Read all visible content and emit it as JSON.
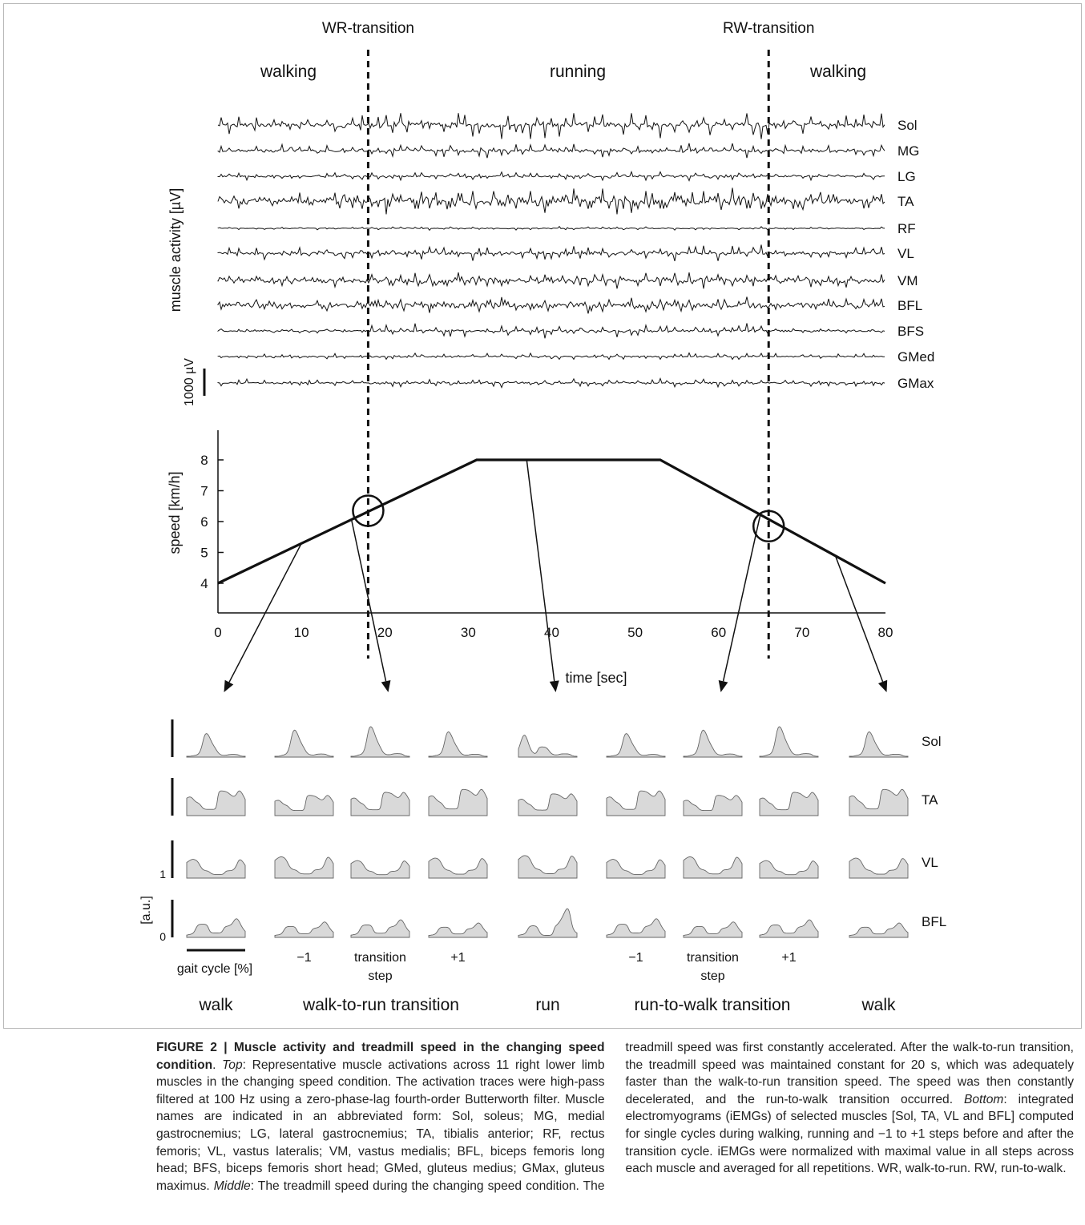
{
  "figure": {
    "transitions": [
      {
        "label": "WR-transition",
        "time": 18
      },
      {
        "label": "RW-transition",
        "time": 66
      }
    ],
    "phases": [
      "walking",
      "running",
      "walking"
    ],
    "emg": {
      "ylabel": "muscle activity [µV]",
      "scale_label": "1000 µV",
      "muscles": [
        "Sol",
        "MG",
        "LG",
        "TA",
        "RF",
        "VL",
        "VM",
        "BFL",
        "BFS",
        "GMed",
        "GMax"
      ]
    },
    "speed_chart": {
      "type": "line",
      "ylabel": "speed [km/h]",
      "xlabel": "time [sec]",
      "xlim": [
        0,
        80
      ],
      "ylim": [
        3,
        9
      ],
      "xticks": [
        "0",
        "10",
        "20",
        "30",
        "40",
        "50",
        "60",
        "70",
        "80"
      ],
      "yticks": [
        "4",
        "5",
        "6",
        "7",
        "8"
      ],
      "x": [
        0,
        31,
        53,
        80
      ],
      "y": [
        4,
        8,
        8,
        4
      ],
      "circles": [
        {
          "x": 18,
          "y": 6.35
        },
        {
          "x": 66,
          "y": 5.85
        }
      ]
    },
    "iemg": {
      "muscles": [
        "Sol",
        "TA",
        "VL",
        "BFL"
      ],
      "axis_label": "[a.u.]",
      "axis_ticks": [
        "1",
        "0"
      ],
      "gait_label": "gait cycle [%]",
      "col_labels": [
        {
          "col": 1,
          "lines": [
            "−1"
          ]
        },
        {
          "col": 2,
          "lines": [
            "transition",
            "step"
          ]
        },
        {
          "col": 3,
          "lines": [
            "+1"
          ]
        },
        {
          "col": 5,
          "lines": [
            "−1"
          ]
        },
        {
          "col": 6,
          "lines": [
            "transition",
            "step"
          ]
        },
        {
          "col": 7,
          "lines": [
            "+1"
          ]
        }
      ],
      "groups": [
        {
          "label": "walk",
          "cols": [
            0,
            0
          ]
        },
        {
          "label": "walk-to-run transition",
          "cols": [
            1,
            3
          ]
        },
        {
          "label": "run",
          "cols": [
            4,
            4
          ]
        },
        {
          "label": "run-to-walk transition",
          "cols": [
            5,
            7
          ]
        },
        {
          "label": "walk",
          "cols": [
            8,
            8
          ]
        }
      ]
    },
    "arrows": [
      {
        "from_time": 10,
        "to_col": 0
      },
      {
        "from_time": 16,
        "to_col": 2
      },
      {
        "from_time": 37,
        "to_col": 4
      },
      {
        "from_time": 65,
        "to_col": 6
      },
      {
        "from_time": 74,
        "to_col": 8
      }
    ]
  },
  "caption": {
    "label": "FIGURE 2 | Muscle activity and treadmill speed in the changing speed condition",
    "top_word": "Top",
    "top_text": ": Representative muscle activations across 11 right lower limb muscles in the changing speed condition. The activation traces were high-pass filtered at 100 Hz using a zero-phase-lag fourth-order Butterworth filter. Muscle names are indicated in an abbreviated form: Sol, soleus; MG, medial gastrocnemius; LG, lateral gastrocnemius; TA, tibialis anterior; RF, rectus femoris; VL, vastus lateralis; VM, vastus medialis; BFL, biceps femoris long head; BFS, biceps femoris short head; GMed, gluteus medius; GMax, gluteus maximus.",
    "middle_word": "Middle",
    "middle_text": ": The treadmill speed during the changing speed condition. The treadmill speed was first constantly accelerated. After the walk-to-run transition, the treadmill speed was maintained constant for 20 s, which was adequately faster than the walk-to-run transition speed. The speed was then constantly decelerated, and the run-to-walk transition occurred.",
    "bottom_word": "Bottom",
    "bottom_text": ": integrated electromyograms (iEMGs) of selected muscles [Sol, TA, VL and BFL] computed for single cycles during walking, running and −1 to +1 steps before and after the transition cycle. iEMGs were normalized with maximal value in all steps across each muscle and averaged for all repetitions. WR, walk-to-run. RW, run-to-walk."
  }
}
